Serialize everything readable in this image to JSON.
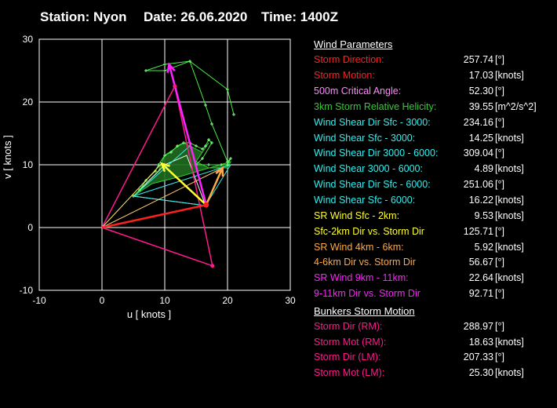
{
  "header": {
    "station": "Station: Nyon",
    "date": "Date: 26.06.2020",
    "time": "Time: 1400Z"
  },
  "colors": {
    "red": "#ff2020",
    "violet": "#ff88ff",
    "green": "#33cc33",
    "cyan": "#33eeee",
    "yellow": "#ffff33",
    "orange": "#ffaa44",
    "magenta": "#ff22ff",
    "pink": "#ff1a8c",
    "white": "#ffffff"
  },
  "params": {
    "title": "Wind Parameters",
    "rows": [
      {
        "label": "Storm Direction:",
        "value": "257.74",
        "unit": "[°]",
        "color": "#ff2020"
      },
      {
        "label": "Storm Motion:",
        "value": "17.03",
        "unit": "[knots]",
        "color": "#ff2020"
      },
      {
        "label": "500m Critical Angle:",
        "value": "52.30",
        "unit": "[°]",
        "color": "#ff88ff"
      },
      {
        "label": "3km Storm Relative Helicity:",
        "value": "39.55",
        "unit": "[m^2/s^2]",
        "color": "#33cc33"
      },
      {
        "label": "Wind Shear Dir Sfc - 3000:",
        "value": "234.16",
        "unit": "[°]",
        "color": "#33eeee"
      },
      {
        "label": "Wind Shear Sfc - 3000:",
        "value": "14.25",
        "unit": "[knots]",
        "color": "#33eeee"
      },
      {
        "label": "Wind Shear Dir 3000 - 6000:",
        "value": "309.04",
        "unit": "[°]",
        "color": "#33eeee"
      },
      {
        "label": "Wind Shear 3000 - 6000:",
        "value": "4.89",
        "unit": "[knots]",
        "color": "#33eeee"
      },
      {
        "label": "Wind Shear Dir Sfc - 6000:",
        "value": "251.06",
        "unit": "[°]",
        "color": "#33eeee"
      },
      {
        "label": "Wind Shear Sfc - 6000:",
        "value": "16.22",
        "unit": "[knots]",
        "color": "#33eeee"
      },
      {
        "label": "SR Wind Sfc - 2km:",
        "value": "9.53",
        "unit": "[knots]",
        "color": "#ffff33"
      },
      {
        "label": "Sfc-2km Dir vs. Storm Dir",
        "value": "125.71",
        "unit": "[°]",
        "color": "#ffff33"
      },
      {
        "label": "SR Wind 4km - 6km:",
        "value": "5.92",
        "unit": "[knots]",
        "color": "#ffaa44"
      },
      {
        "label": "4-6km Dir vs. Storm Dir",
        "value": "56.67",
        "unit": "[°]",
        "color": "#ffaa44"
      },
      {
        "label": "SR Wind 9km - 11km:",
        "value": "22.64",
        "unit": "[knots]",
        "color": "#ff22ff"
      },
      {
        "label": "9-11km Dir vs. Storm Dir",
        "value": "92.71",
        "unit": "[°]",
        "color": "#ff22ff"
      }
    ],
    "bunkers_title": "Bunkers Storm Motion",
    "bunkers_rows": [
      {
        "label": "Storm Dir (RM):",
        "value": "288.97",
        "unit": "[°]",
        "color": "#ff1a8c"
      },
      {
        "label": "Storm Mot (RM):",
        "value": "18.63",
        "unit": "[knots]",
        "color": "#ff1a8c"
      },
      {
        "label": "Storm Dir (LM):",
        "value": "207.33",
        "unit": "[°]",
        "color": "#ff1a8c"
      },
      {
        "label": "Storm Mot (LM):",
        "value": "25.30",
        "unit": "[knots]",
        "color": "#ff1a8c"
      }
    ]
  },
  "chart_data": {
    "type": "scatter",
    "xlabel": "u  [ knots ]",
    "ylabel": "v  [ knots ]",
    "xlim": [
      -10,
      30
    ],
    "ylim": [
      -10,
      30
    ],
    "xticks": [
      -10,
      0,
      10,
      20,
      30
    ],
    "yticks": [
      -10,
      0,
      10,
      20,
      30
    ],
    "grid": true,
    "hodograph": {
      "name": "hodograph",
      "color": "#33cc33",
      "points": [
        [
          5,
          5
        ],
        [
          6,
          6
        ],
        [
          7,
          7.5
        ],
        [
          8.5,
          9
        ],
        [
          9,
          10
        ],
        [
          10,
          11.5
        ],
        [
          11,
          12
        ],
        [
          12,
          13
        ],
        [
          13,
          13.5
        ],
        [
          14,
          13.5
        ],
        [
          15,
          13
        ],
        [
          16,
          12.5
        ],
        [
          16.5,
          13
        ],
        [
          17,
          14
        ],
        [
          17.5,
          13.5
        ],
        [
          16,
          11
        ],
        [
          15,
          10
        ],
        [
          17,
          10
        ],
        [
          19,
          10
        ],
        [
          20,
          10
        ],
        [
          20.5,
          11
        ],
        [
          20,
          10.5
        ],
        [
          17.5,
          16.5
        ],
        [
          16.5,
          19.5
        ],
        [
          14,
          26.5
        ],
        [
          10,
          25
        ],
        [
          7,
          25
        ],
        [
          10,
          26
        ],
        [
          14,
          26.5
        ],
        [
          20,
          22
        ],
        [
          21,
          18
        ]
      ]
    },
    "green_poly": [
      [
        5,
        5
      ],
      [
        9,
        9
      ],
      [
        10,
        11.5
      ],
      [
        13,
        13.5
      ],
      [
        16,
        12
      ],
      [
        17,
        13.5
      ],
      [
        15,
        10.5
      ],
      [
        17,
        9.5
      ],
      [
        20,
        9.5
      ],
      [
        20.5,
        10.5
      ],
      [
        12,
        8
      ],
      [
        8,
        7
      ],
      [
        5,
        5
      ]
    ],
    "cyan_lines": [
      [
        [
          5,
          5
        ],
        [
          14,
          13
        ]
      ],
      [
        [
          5,
          5
        ],
        [
          20.5,
          10
        ]
      ],
      [
        [
          20.5,
          10
        ],
        [
          16.5,
          3.5
        ]
      ],
      [
        [
          16.5,
          3.5
        ],
        [
          5,
          5
        ]
      ]
    ],
    "white_poly": [
      [
        5,
        5
      ],
      [
        16.5,
        3.5
      ],
      [
        13.5,
        11.5
      ],
      [
        10,
        10
      ],
      [
        5,
        5
      ]
    ],
    "storm_motion": [
      16.6,
      3.6
    ],
    "red_vector": [
      [
        0,
        0
      ],
      [
        16.6,
        3.6
      ]
    ],
    "yellow_vector": [
      [
        16.6,
        3.6
      ],
      [
        9.5,
        10.2
      ]
    ],
    "orange_vector": [
      [
        16.6,
        3.6
      ],
      [
        19.2,
        9.5
      ]
    ],
    "magenta_vector": [
      [
        16.6,
        3.6
      ],
      [
        10.7,
        26
      ]
    ],
    "rm_point": [
      17.6,
      -6.1
    ],
    "lm_point": [
      11.6,
      22.5
    ],
    "pink_lines": [
      [
        [
          0,
          0
        ],
        [
          17.6,
          -6.1
        ]
      ],
      [
        [
          0,
          0
        ],
        [
          11.6,
          22.5
        ]
      ],
      [
        [
          11.6,
          22.5
        ],
        [
          17.6,
          -6.1
        ]
      ]
    ]
  }
}
